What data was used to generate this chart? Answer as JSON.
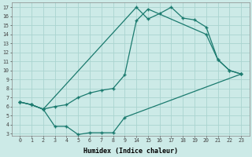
{
  "bg_color": "#cceae7",
  "line_color": "#1a7a6e",
  "grid_color": "#aad4d0",
  "xlabel": "Humidex (Indice chaleur)",
  "yticks": [
    3,
    4,
    5,
    6,
    7,
    8,
    9,
    10,
    11,
    12,
    13,
    14,
    15,
    16,
    17
  ],
  "x_hours": [
    0,
    1,
    2,
    3,
    4,
    5,
    6,
    7,
    8,
    9,
    14,
    15,
    16,
    17,
    18,
    19,
    20,
    21,
    22,
    23
  ],
  "ylim_min": 2.8,
  "ylim_max": 17.5,
  "line1": {
    "x": [
      0,
      1,
      2,
      14,
      15,
      16,
      17,
      18,
      19,
      20,
      21,
      22,
      23
    ],
    "y": [
      6.5,
      6.2,
      5.7,
      17.0,
      15.7,
      16.3,
      17.0,
      15.8,
      15.6,
      14.8,
      11.2,
      10.0,
      9.6
    ]
  },
  "line2": {
    "x": [
      0,
      1,
      2,
      3,
      4,
      5,
      6,
      7,
      8,
      9,
      14,
      15,
      20,
      21,
      22,
      23
    ],
    "y": [
      6.5,
      6.2,
      5.7,
      6.0,
      6.2,
      7.0,
      7.5,
      7.8,
      8.0,
      9.5,
      15.5,
      16.8,
      14.0,
      11.2,
      10.0,
      9.6
    ]
  },
  "line3": {
    "x": [
      0,
      1,
      2,
      3,
      4,
      5,
      6,
      7,
      8,
      9,
      23
    ],
    "y": [
      6.5,
      6.2,
      5.7,
      3.8,
      3.8,
      2.9,
      3.1,
      3.1,
      3.1,
      4.8,
      9.6
    ]
  },
  "line4": {
    "x": [
      2,
      3,
      4,
      5,
      6,
      7,
      8,
      9
    ],
    "y": [
      5.7,
      3.8,
      3.8,
      2.9,
      3.1,
      3.1,
      3.1,
      4.8
    ]
  }
}
